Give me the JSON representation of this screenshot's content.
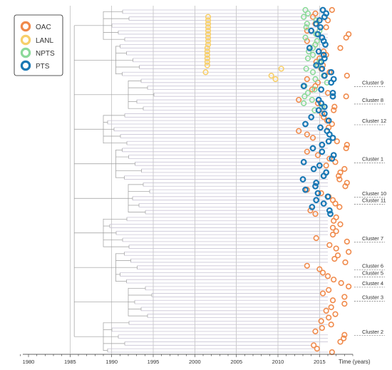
{
  "chart_data": {
    "type": "scatter",
    "title": "",
    "xlabel": "Time (years)",
    "ylabel": "",
    "xlim": [
      1980,
      2019
    ],
    "x_ticks": [
      1980,
      1985,
      1990,
      1995,
      2000,
      2005,
      2010,
      2015
    ],
    "x_tick_labels": [
      "1980",
      "1985",
      "1990",
      "1995",
      "2000",
      "2005",
      "2010",
      "2015"
    ],
    "grid": true,
    "legend_position": "top-left",
    "series": [
      {
        "name": "OAC",
        "color": "#f08a4b",
        "x": [
          2016.5,
          2014.5,
          2014.2,
          2016.0,
          2014.5,
          2015.8,
          2013.5,
          2018.5,
          2018.2,
          2013.5,
          2014.5,
          2017.5,
          2015.5,
          2015.8,
          2015.0,
          2014.6,
          2015.4,
          2015.2,
          2016.2,
          2018.3,
          2013.5,
          2014.8,
          2014.5,
          2014.1,
          2016.0,
          2018.2,
          2012.5,
          2014.8,
          2016.8,
          2016.7,
          2015.3,
          2015.5,
          2015.9,
          2016.5,
          2016.1,
          2012.5,
          2013.5,
          2014.2,
          2017.1,
          2018.3,
          2018.2,
          2013.5,
          2014.8,
          2016.2,
          2016.9,
          2015.8,
          2018.0,
          2017.5,
          2017.3,
          2017.4,
          2018.3,
          2018.1,
          2013.5,
          2015.2,
          2016.1,
          2016.6,
          2016.9,
          2017.4,
          2013.9,
          2014.5,
          2017.0,
          2016.7,
          2017.5,
          2016.6,
          2017.0,
          2016.6,
          2014.6,
          2018.3,
          2016.2,
          2017.0,
          2018.5,
          2017.2,
          2016.8,
          2018.1,
          2013.5,
          2015.0,
          2015.4,
          2016.0,
          2016.7,
          2017.6,
          2018.5,
          2016.1,
          2015.4,
          2018.0,
          2016.6,
          2018.0,
          2016.4,
          2015.8,
          2016.9,
          2016.1,
          2015.2,
          2016.4,
          2015.3,
          2014.5,
          2018.0,
          2017.9,
          2017.5,
          2014.3,
          2014.7,
          2016.5
        ],
        "y": [
          1,
          2,
          3,
          4,
          5,
          6,
          7,
          8,
          9,
          10,
          11,
          12,
          13,
          14,
          15,
          16,
          17,
          18,
          19,
          20,
          21,
          22,
          23,
          24,
          25,
          26,
          27,
          28,
          29,
          30,
          31,
          32,
          33,
          34,
          35,
          36,
          37,
          38,
          39,
          40,
          41,
          42,
          43,
          44,
          45,
          46,
          47,
          48,
          49,
          50,
          51,
          52,
          53,
          54,
          55,
          56,
          57,
          58,
          59,
          60,
          61,
          62,
          63,
          64,
          65,
          66,
          67,
          68,
          69,
          70,
          71,
          72,
          73,
          74,
          75,
          76,
          77,
          78,
          79,
          80,
          81,
          82,
          83,
          84,
          85,
          86,
          87,
          88,
          89,
          90,
          91,
          92,
          93,
          94,
          95,
          96,
          97,
          98,
          99,
          100
        ]
      },
      {
        "name": "LANL",
        "color": "#f7cf6a",
        "x": [
          2001.6,
          2001.6,
          2001.6,
          2001.6,
          2001.6,
          2001.6,
          2001.6,
          2001.6,
          2001.6,
          2001.5,
          2001.5,
          2001.5,
          2001.5,
          2001.5,
          2001.5,
          2010.4,
          2001.3,
          2009.2,
          2009.7
        ],
        "y": [
          3,
          4,
          5,
          6,
          7,
          8,
          9,
          10,
          11,
          12,
          13,
          14,
          15,
          16,
          17,
          18,
          19,
          20,
          21
        ]
      },
      {
        "name": "NPTS",
        "color": "#8cd99a",
        "x": [
          2013.3,
          2013.6,
          2013.1,
          2014.6,
          2013.5,
          2013.4,
          2015.0,
          2014.6,
          2013.3,
          2014.7,
          2014.5,
          2014.2,
          2013.7,
          2014.2,
          2013.6,
          2015.0,
          2014.8,
          2013.4,
          2014.2,
          2015.5,
          2014.5,
          2015.9,
          2013.2,
          2014.4,
          2013.6,
          2013.2,
          2014.1,
          2013.1,
          2015.3,
          2014.4
        ],
        "y": [
          1,
          2,
          3,
          4,
          5,
          6,
          7,
          8,
          9,
          10,
          11,
          12,
          13,
          14,
          15,
          16,
          17,
          18,
          19,
          20,
          21,
          22,
          23,
          24,
          25,
          26,
          27,
          28,
          29,
          30
        ]
      },
      {
        "name": "PTS",
        "color": "#1a78b4",
        "x": [
          2015.4,
          2015.8,
          2015.6,
          2015.0,
          2014.6,
          2015.1,
          2014.0,
          2014.8,
          2015.3,
          2015.5,
          2015.7,
          2013.8,
          2014.9,
          2015.5,
          2015.6,
          2015.2,
          2014.6,
          2015.3,
          2016.4,
          2015.6,
          2016.7,
          2016.4,
          2013.1,
          2015.2,
          2016.6,
          2016.6,
          2014.9,
          2015.2,
          2015.6,
          2014.9,
          2015.6,
          2014.0,
          2016.1,
          2013.3,
          2015.1,
          2015.9,
          2016.2,
          2016.6,
          2016.1,
          2015.3,
          2014.2,
          2015.3,
          2016.7,
          2016.5,
          2013.1,
          2015.0,
          2014.3,
          2015.8,
          2015.5,
          2013.0,
          2014.6,
          2014.5,
          2013.3,
          2014.8,
          2016.0,
          2014.6,
          2015.5,
          2014.1,
          2016.2,
          2016.3
        ],
        "y": [
          1,
          2,
          3,
          4,
          5,
          6,
          7,
          8,
          9,
          10,
          11,
          12,
          13,
          14,
          15,
          16,
          17,
          18,
          19,
          20,
          21,
          22,
          23,
          24,
          25,
          26,
          27,
          28,
          29,
          30,
          31,
          32,
          33,
          34,
          35,
          36,
          37,
          38,
          39,
          40,
          41,
          42,
          43,
          44,
          45,
          46,
          47,
          48,
          49,
          50,
          51,
          52,
          53,
          54,
          55,
          56,
          57,
          58,
          59,
          60
        ]
      }
    ],
    "annotations": [
      "Cluster 9",
      "Cluster 8",
      "Cluster 12",
      "Cluster 1",
      "Cluster 10",
      "Cluster 11",
      "Cluster 7",
      "Cluster 6",
      "Cluster 5",
      "Cluster 4",
      "Cluster 3",
      "Cluster 2"
    ]
  }
}
